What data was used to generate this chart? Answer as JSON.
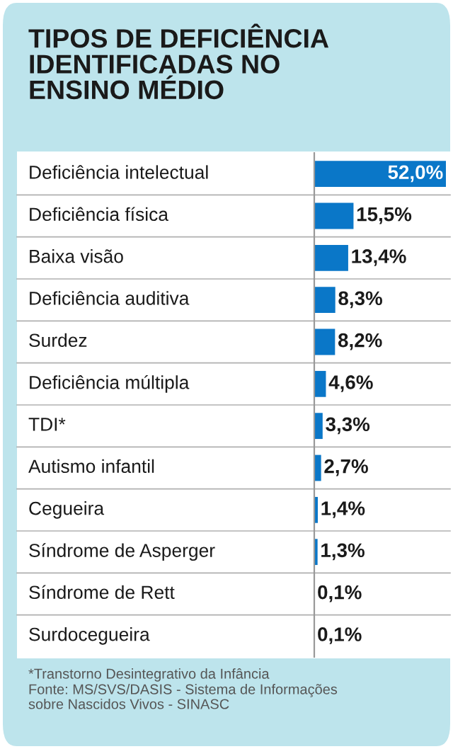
{
  "chart_data": {
    "type": "bar",
    "orientation": "horizontal",
    "title": "TIPOS DE DEFICIÊNCIA\nIDENTIFICADAS NO\nENSINO MÉDIO",
    "categories": [
      "Deficiência intelectual",
      "Deficiência física",
      "Baixa visão",
      "Deficiência auditiva",
      "Surdez",
      "Deficiência múltipla",
      "TDI*",
      "Autismo infantil",
      "Cegueira",
      "Síndrome de Asperger",
      "Síndrome de Rett",
      "Surdocegueira"
    ],
    "values": [
      52.0,
      15.5,
      13.4,
      8.3,
      8.2,
      4.6,
      3.3,
      2.7,
      1.4,
      1.3,
      0.1,
      0.1
    ],
    "value_labels": [
      "52,0%",
      "15,5%",
      "13,4%",
      "8,3%",
      "8,2%",
      "4,6%",
      "3,3%",
      "2,7%",
      "1,4%",
      "1,3%",
      "0,1%",
      "0,1%"
    ],
    "color": "#0a77c8",
    "annotations": [
      "*Transtorno Desintegrativo da Infância",
      "Fonte: MS/SVS/DASIS - Sistema de Informações\nsobre Nascidos Vivos - SINASC"
    ]
  }
}
